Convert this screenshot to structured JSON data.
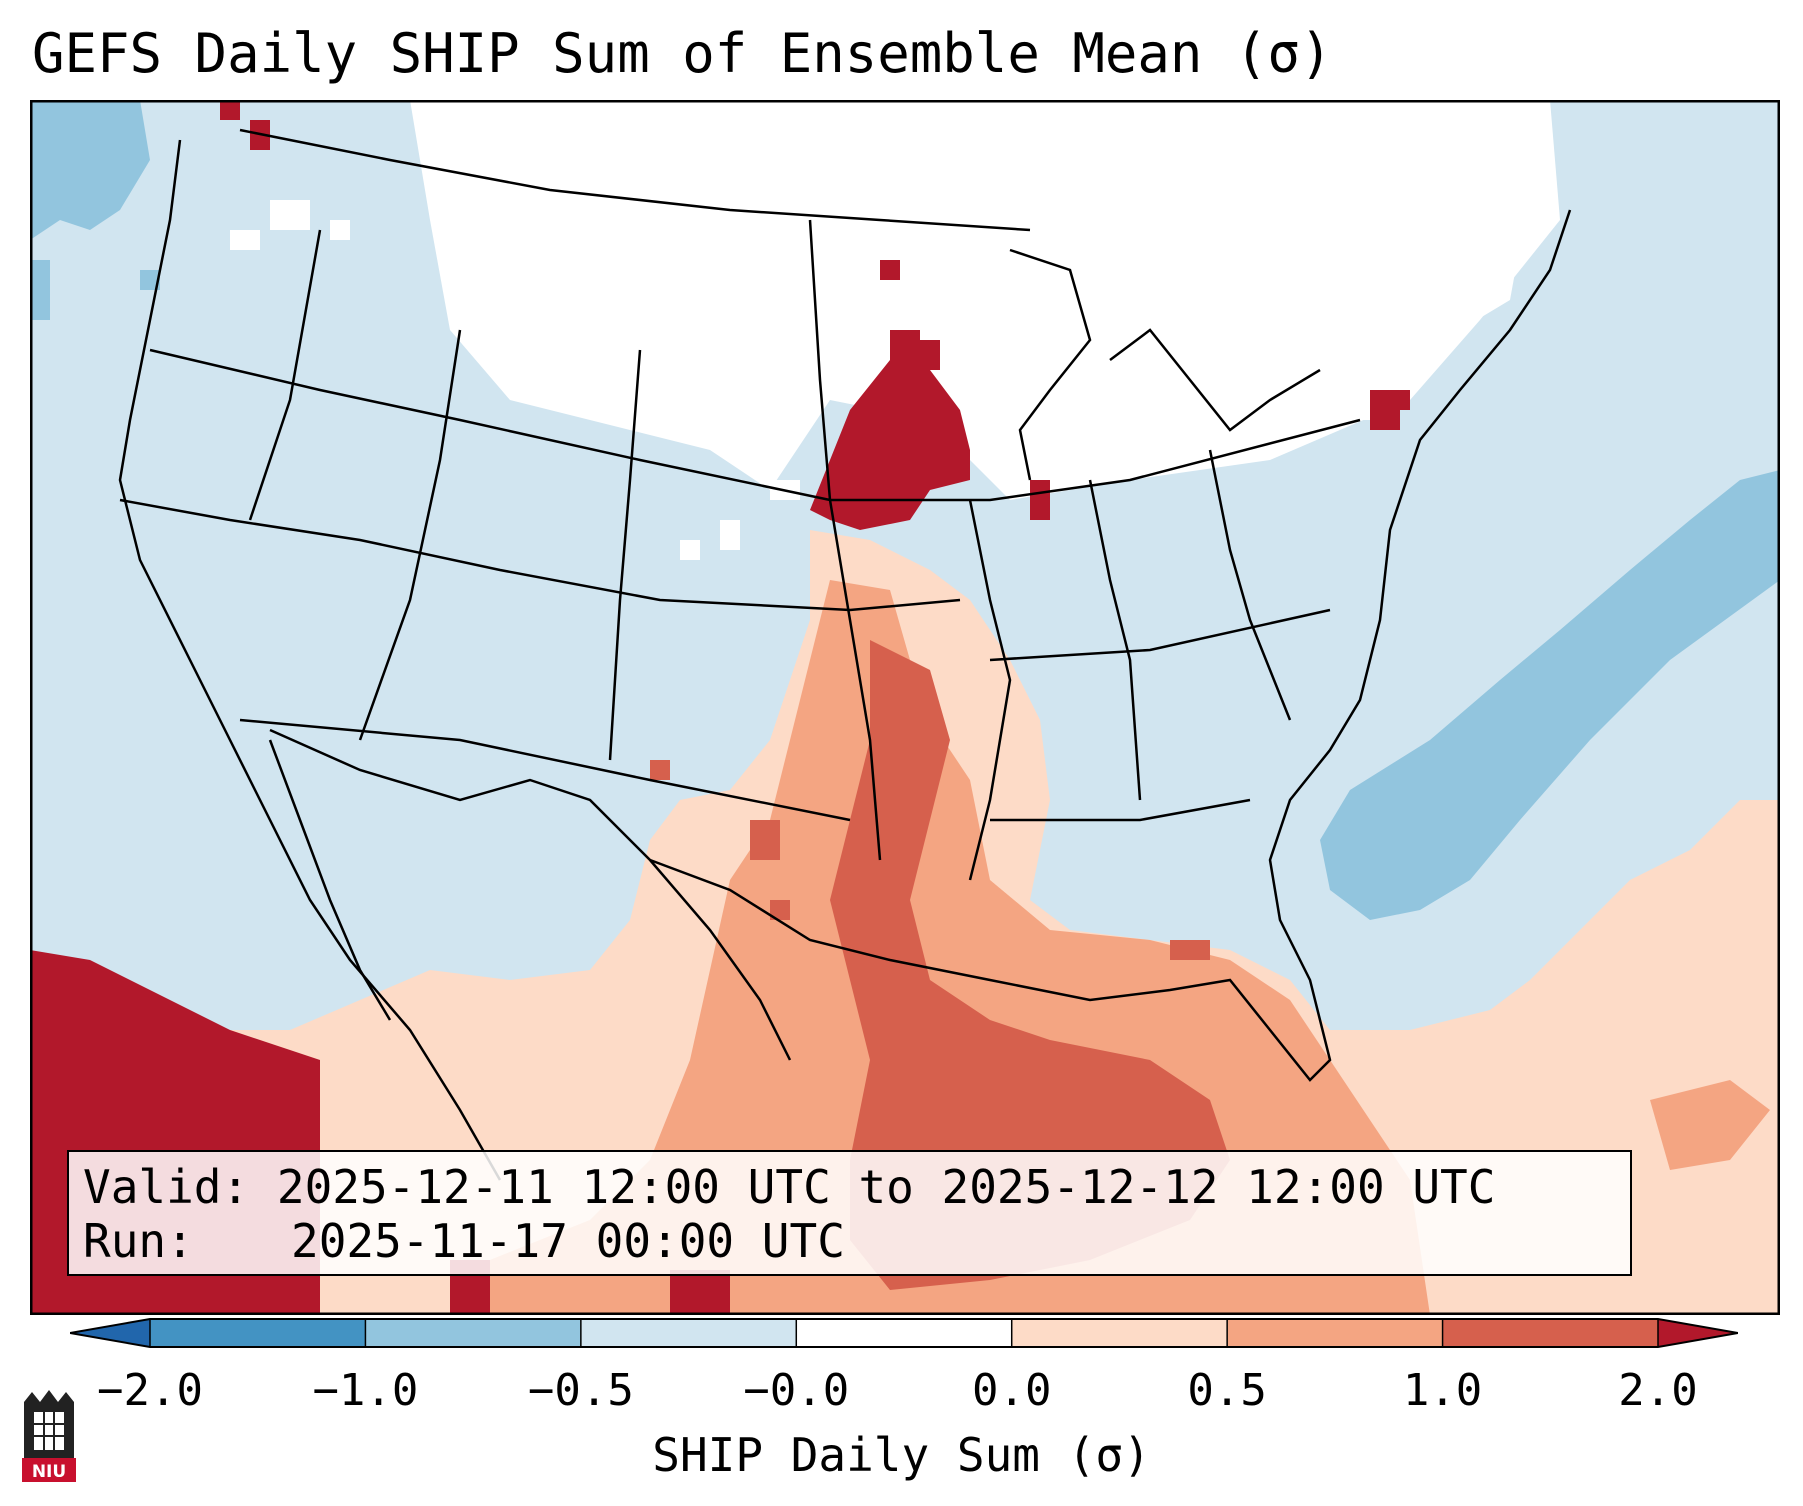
{
  "title": "GEFS Daily SHIP Sum of Ensemble Mean (σ)",
  "valid_box": {
    "valid_label": "Valid:",
    "valid_value": "2025-12-11 12:00 UTC to 2025-12-12 12:00 UTC",
    "run_label": "Run:",
    "run_value": "2025-11-17 00:00 UTC"
  },
  "colorbar": {
    "label": "SHIP Daily Sum (σ)",
    "ticks": [
      "−2.0",
      "−1.0",
      "−0.5",
      "−0.0",
      "0.0",
      "0.5",
      "1.0",
      "2.0"
    ],
    "colors": [
      "#4393c3",
      "#92c5de",
      "#d1e5f0",
      "#ffffff",
      "#fddbc7",
      "#f4a582",
      "#d6604d"
    ],
    "under_color": "#2166ac",
    "over_color": "#b2182b"
  },
  "logo": {
    "text": "NIU",
    "color": "#c8102e"
  }
}
